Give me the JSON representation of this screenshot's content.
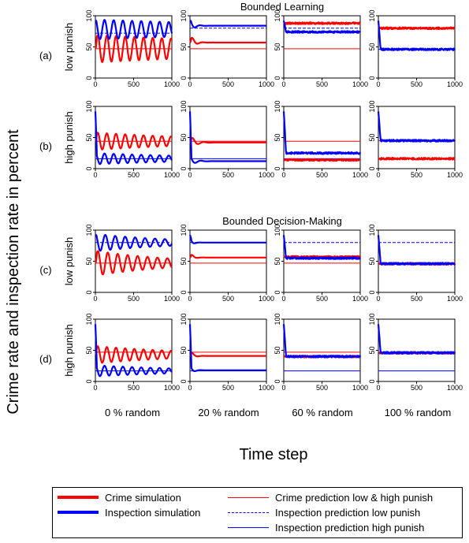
{
  "figure": {
    "section_titles": [
      "Bounded Learning",
      "Bounded Decision-Making"
    ],
    "y_axis_label": "Crime rate and inspection rate in percent",
    "x_axis_label": "Time step",
    "row_labels": [
      {
        "tag": "(a)",
        "name": "low punish"
      },
      {
        "tag": "(b)",
        "name": "high punish"
      },
      {
        "tag": "(c)",
        "name": "low punish"
      },
      {
        "tag": "(d)",
        "name": "high punish"
      }
    ],
    "column_labels": [
      "0 % random",
      "20 % random",
      "60 % random",
      "100 % random"
    ],
    "x_ticks": [
      "0",
      "500",
      "1000"
    ],
    "y_ticks": [
      "0",
      "50",
      "100"
    ]
  },
  "legend": {
    "items": [
      {
        "label": "Crime simulation",
        "color": "#ff0000",
        "style": "thick"
      },
      {
        "label": "Inspection simulation",
        "color": "#0000ff",
        "style": "thick"
      },
      {
        "label": "Crime prediction low & high punish",
        "color": "#ff0000",
        "style": "thin"
      },
      {
        "label": "Inspection prediction low punish",
        "color": "#0000ff",
        "style": "dashed"
      },
      {
        "label": "Inspection prediction high punish",
        "color": "#0000ff",
        "style": "thin"
      }
    ]
  },
  "chart_data": {
    "type": "line",
    "xlim": [
      0,
      1000
    ],
    "ylim": [
      0,
      100
    ],
    "colors": {
      "crime": "#ff0000",
      "inspection": "#0000ff"
    },
    "panels": [
      {
        "row": "a",
        "col": "0 % random",
        "crime_sim": {
          "mean": 47,
          "amp": 22,
          "period": 120,
          "decay": 0.0003
        },
        "insp_sim": {
          "mean": 78,
          "amp": 16,
          "period": 120,
          "decay": 0.0003
        },
        "crime_pred": 47,
        "insp_pred_low": 72,
        "insp_pred_high": null
      },
      {
        "row": "a",
        "col": "20 % random",
        "crime_sim": {
          "mean": 57,
          "amp": 14,
          "period": 140,
          "decay": 0.02
        },
        "insp_sim": {
          "mean": 84,
          "amp": 10,
          "period": 140,
          "decay": 0.02
        },
        "crime_pred": 47,
        "insp_pred_low": 80,
        "insp_pred_high": null
      },
      {
        "row": "a",
        "col": "60 % random",
        "crime_sim": {
          "mean": 88,
          "amp": 0,
          "period": 100,
          "decay": 0.05
        },
        "insp_sim": {
          "mean": 74,
          "amp": 0,
          "period": 100,
          "decay": 0.05
        },
        "crime_pred": 47,
        "insp_pred_low": 80,
        "insp_pred_high": null
      },
      {
        "row": "a",
        "col": "100 % random",
        "crime_sim": {
          "mean": 80,
          "amp": 0,
          "period": 100,
          "decay": 0.05
        },
        "insp_sim": {
          "mean": 46,
          "amp": 0,
          "period": 100,
          "decay": 0.05
        },
        "crime_pred": 80,
        "insp_pred_low": 46,
        "insp_pred_high": null
      },
      {
        "row": "b",
        "col": "0 % random",
        "crime_sim": {
          "mean": 44,
          "amp": 14,
          "period": 120,
          "decay": 0.0006
        },
        "insp_sim": {
          "mean": 16,
          "amp": 9,
          "period": 120,
          "decay": 0.0006
        },
        "crime_pred": 44,
        "insp_pred_low": null,
        "insp_pred_high": 16
      },
      {
        "row": "b",
        "col": "20 % random",
        "crime_sim": {
          "mean": 42,
          "amp": 12,
          "period": 150,
          "decay": 0.015
        },
        "insp_sim": {
          "mean": 12,
          "amp": 8,
          "period": 150,
          "decay": 0.015
        },
        "crime_pred": 44,
        "insp_pred_low": null,
        "insp_pred_high": 16
      },
      {
        "row": "b",
        "col": "60 % random",
        "crime_sim": {
          "mean": 14,
          "amp": 0,
          "period": 100,
          "decay": 0.05
        },
        "insp_sim": {
          "mean": 25,
          "amp": 0,
          "period": 100,
          "decay": 0.05
        },
        "crime_pred": 44,
        "insp_pred_low": null,
        "insp_pred_high": 16
      },
      {
        "row": "b",
        "col": "100 % random",
        "crime_sim": {
          "mean": 16,
          "amp": 0,
          "period": 100,
          "decay": 0.05
        },
        "insp_sim": {
          "mean": 45,
          "amp": 0,
          "period": 100,
          "decay": 0.05
        },
        "crime_pred": 45,
        "insp_pred_low": null,
        "insp_pred_high": 16
      },
      {
        "row": "c",
        "col": "0 % random",
        "crime_sim": {
          "mean": 47,
          "amp": 20,
          "period": 130,
          "decay": 0.001
        },
        "insp_sim": {
          "mean": 80,
          "amp": 14,
          "period": 130,
          "decay": 0.001
        },
        "crime_pred": 47,
        "insp_pred_low": 80,
        "insp_pred_high": null
      },
      {
        "row": "c",
        "col": "20 % random",
        "crime_sim": {
          "mean": 56,
          "amp": 10,
          "period": 140,
          "decay": 0.03
        },
        "insp_sim": {
          "mean": 80,
          "amp": 8,
          "period": 140,
          "decay": 0.03
        },
        "crime_pred": 47,
        "insp_pred_low": 80,
        "insp_pred_high": null
      },
      {
        "row": "c",
        "col": "60 % random",
        "crime_sim": {
          "mean": 57,
          "amp": 0,
          "period": 100,
          "decay": 0.05
        },
        "insp_sim": {
          "mean": 55,
          "amp": 0,
          "period": 100,
          "decay": 0.05
        },
        "crime_pred": 47,
        "insp_pred_low": 80,
        "insp_pred_high": null
      },
      {
        "row": "c",
        "col": "100 % random",
        "crime_sim": {
          "mean": 46,
          "amp": 0,
          "period": 100,
          "decay": 0.05
        },
        "insp_sim": {
          "mean": 46,
          "amp": 0,
          "period": 100,
          "decay": 0.05
        },
        "crime_pred": 47,
        "insp_pred_low": 80,
        "insp_pred_high": null
      },
      {
        "row": "d",
        "col": "0 % random",
        "crime_sim": {
          "mean": 43,
          "amp": 14,
          "period": 120,
          "decay": 0.0008
        },
        "insp_sim": {
          "mean": 17,
          "amp": 9,
          "period": 120,
          "decay": 0.0008
        },
        "crime_pred": 47,
        "insp_pred_low": null,
        "insp_pred_high": 17
      },
      {
        "row": "d",
        "col": "20 % random",
        "crime_sim": {
          "mean": 41,
          "amp": 10,
          "period": 150,
          "decay": 0.025
        },
        "insp_sim": {
          "mean": 18,
          "amp": 8,
          "period": 150,
          "decay": 0.025
        },
        "crime_pred": 47,
        "insp_pred_low": null,
        "insp_pred_high": 17
      },
      {
        "row": "d",
        "col": "60 % random",
        "crime_sim": {
          "mean": 40,
          "amp": 0,
          "period": 100,
          "decay": 0.05
        },
        "insp_sim": {
          "mean": 40,
          "amp": 0,
          "period": 100,
          "decay": 0.05
        },
        "crime_pred": 47,
        "insp_pred_low": null,
        "insp_pred_high": 17
      },
      {
        "row": "d",
        "col": "100 % random",
        "crime_sim": {
          "mean": 46,
          "amp": 0,
          "period": 100,
          "decay": 0.05
        },
        "insp_sim": {
          "mean": 46,
          "amp": 0,
          "period": 100,
          "decay": 0.05
        },
        "crime_pred": 47,
        "insp_pred_low": null,
        "insp_pred_high": 17
      }
    ]
  }
}
